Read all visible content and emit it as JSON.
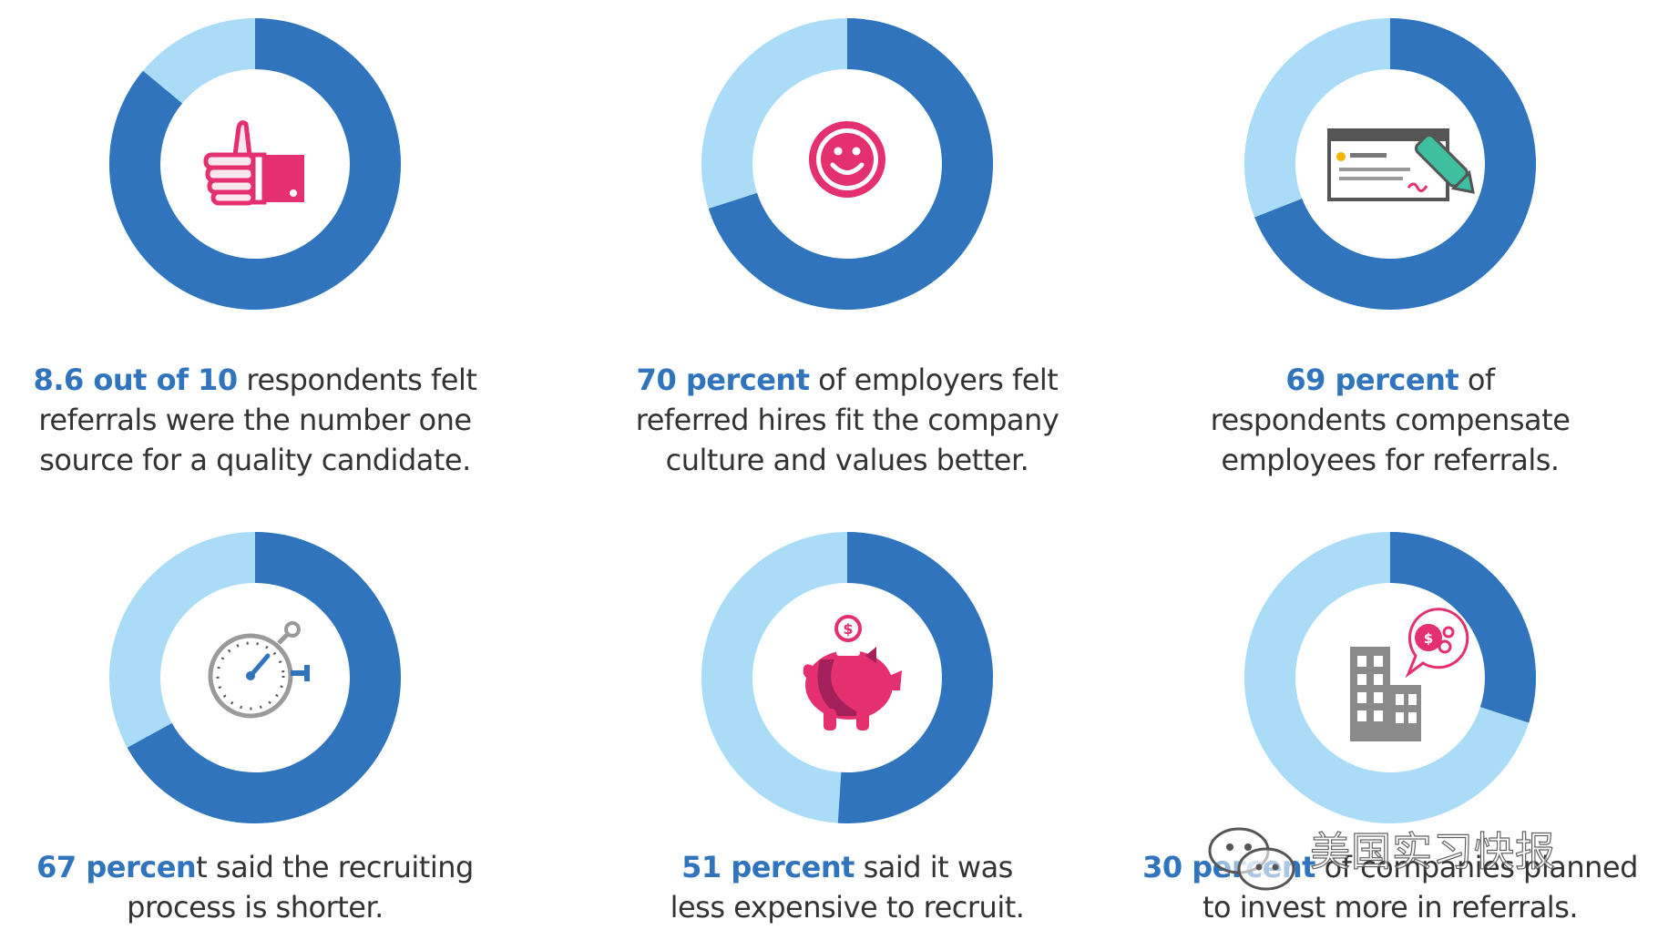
{
  "colors": {
    "dark": "#2f74bd",
    "light": "#abdcf7",
    "accent": "#e4306f",
    "text": "#333333"
  },
  "chart_data": [
    {
      "type": "pie",
      "title": "8.6 out of 10 respondents felt referrals were the number one source for a quality candidate.",
      "value": 86,
      "unit": "percent",
      "icon": "thumbs-up-icon",
      "caption": {
        "highlight": "8.6 out of 10",
        "rest_line1": " respondents felt",
        "line2": "referrals were the number one",
        "line3": "source for a quality candidate."
      }
    },
    {
      "type": "pie",
      "title": "70 percent of employers felt referred hires fit the company culture and values better.",
      "value": 70,
      "unit": "percent",
      "icon": "smiley-icon",
      "caption": {
        "highlight": "70 percent",
        "rest_line1": " of employers felt",
        "line2": "referred hires fit the company",
        "line3": "culture and values better."
      }
    },
    {
      "type": "pie",
      "title": "69 percent of respondents compensate employees for referrals.",
      "value": 69,
      "unit": "percent",
      "icon": "check-signing-icon",
      "caption": {
        "highlight": "69 percent",
        "rest_line1": " of",
        "line2": "respondents compensate",
        "line3": "employees for referrals."
      }
    },
    {
      "type": "pie",
      "title": "67 percent said the recruiting process is shorter.",
      "value": 67,
      "unit": "percent",
      "icon": "stopwatch-icon",
      "caption": {
        "highlight": "67 percen",
        "rest_line1": "t said the recruiting",
        "line2": "process is shorter.",
        "line3": ""
      }
    },
    {
      "type": "pie",
      "title": "51 percent said it was less expensive to recruit.",
      "value": 51,
      "unit": "percent",
      "icon": "piggy-bank-icon",
      "caption": {
        "highlight": "51 percent",
        "rest_line1": " said it was",
        "line2": "less expensive to recruit.",
        "line3": ""
      }
    },
    {
      "type": "pie",
      "title": "30 percent of companies planned to invest more in referrals.",
      "value": 30,
      "unit": "percent",
      "icon": "building-money-icon",
      "caption": {
        "highlight": "30 percent",
        "rest_line1": " of companies planned",
        "line2": "to invest more in referrals.",
        "line3": ""
      }
    }
  ],
  "watermark": {
    "text": "美国实习快报",
    "icon": "wechat-icon"
  }
}
